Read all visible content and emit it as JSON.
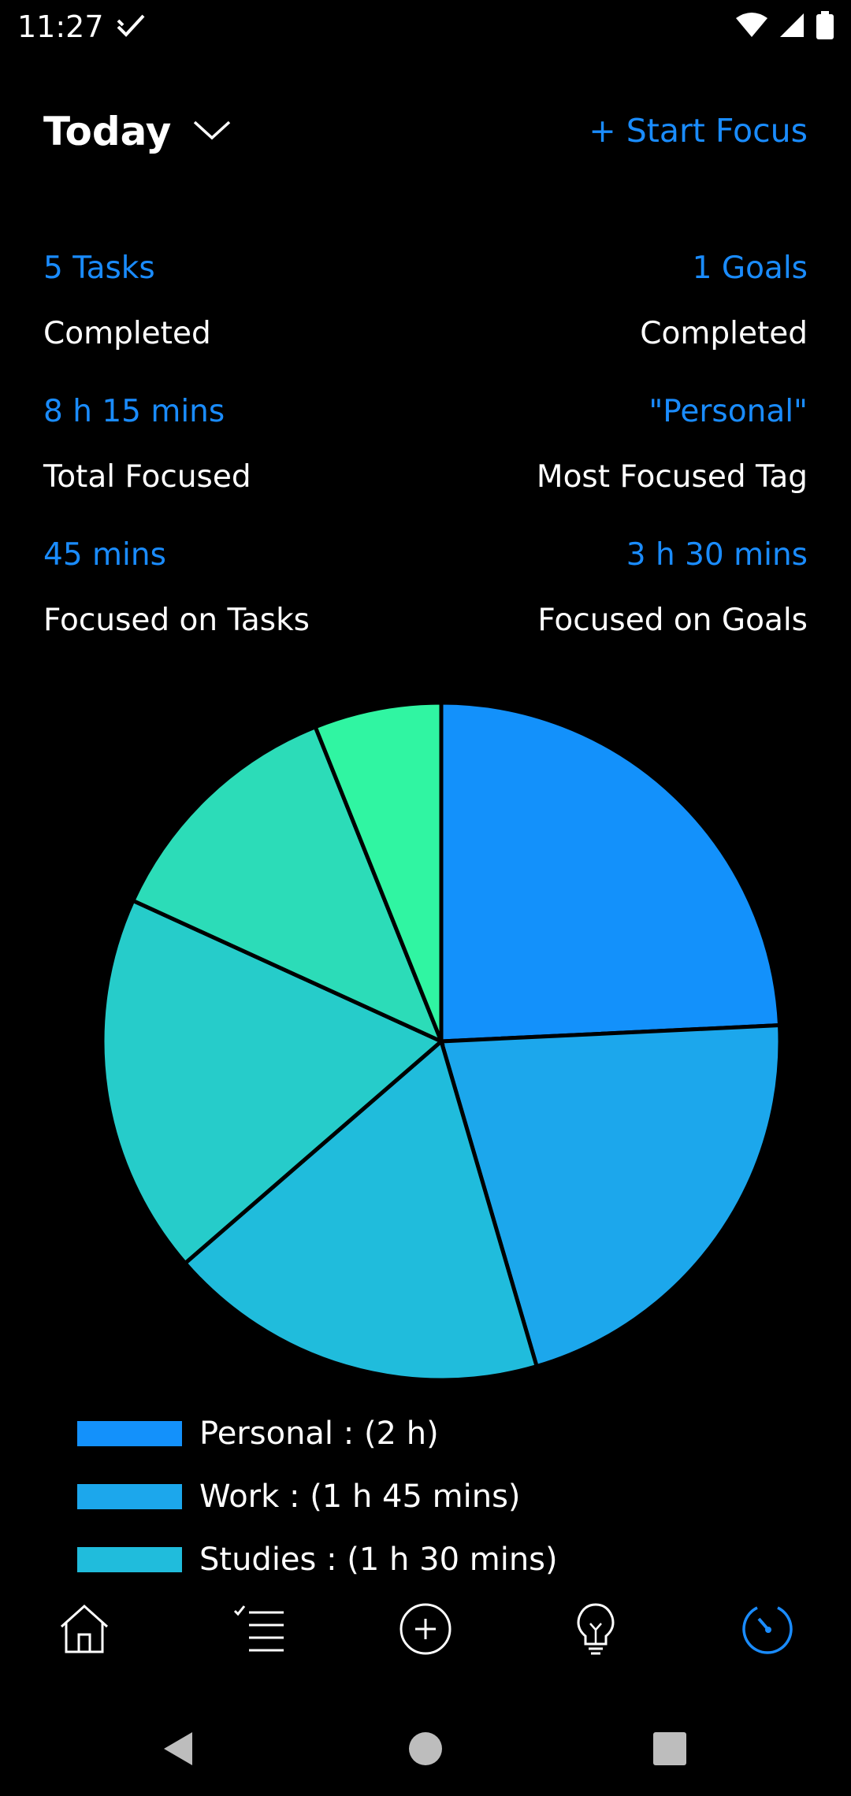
{
  "status_bar": {
    "time": "11:27",
    "icons": [
      "check-icon",
      "wifi-icon",
      "signal-icon",
      "battery-icon"
    ]
  },
  "header": {
    "title": "Today",
    "start_focus": "+ Start Focus"
  },
  "stats": [
    {
      "value": "5 Tasks",
      "label": "Completed"
    },
    {
      "value": "1 Goals",
      "label": "Completed"
    },
    {
      "value": "8 h 15 mins",
      "label": "Total Focused"
    },
    {
      "value": "\"Personal\"",
      "label": "Most Focused Tag"
    },
    {
      "value": "45 mins",
      "label": "Focused on Tasks"
    },
    {
      "value": "3 h 30 mins",
      "label": "Focused on Goals"
    }
  ],
  "chart_data": {
    "type": "pie",
    "slices": [
      {
        "name": "Personal",
        "value": 2.0,
        "color": "#1391fb"
      },
      {
        "name": "Work",
        "value": 1.75,
        "color": "#1ca7ec"
      },
      {
        "name": "Studies",
        "value": 1.5,
        "color": "#20bcdc"
      },
      {
        "name": "",
        "value": 1.5,
        "color": "#26ccca"
      },
      {
        "name": "",
        "value": 1.0,
        "color": "#2cdcb8"
      },
      {
        "name": "",
        "value": 0.5,
        "color": "#30f5a2"
      }
    ]
  },
  "legend": [
    {
      "label": "Personal : (2 h)",
      "color": "#1391fb"
    },
    {
      "label": "Work : (1 h 45 mins)",
      "color": "#1ca7ec"
    },
    {
      "label": "Studies : (1 h 30 mins)",
      "color": "#20bcdc"
    }
  ],
  "bottom_nav": {
    "items": [
      "home-icon",
      "task-list-icon",
      "add-circle-icon",
      "lightbulb-icon",
      "focus-timer-icon"
    ],
    "active_color": "#1a8cff",
    "inactive_color": "#ffffff"
  },
  "system_nav": {
    "items": [
      "back-icon",
      "home-circle-icon",
      "recents-icon"
    ]
  }
}
